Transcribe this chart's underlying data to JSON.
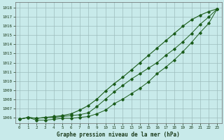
{
  "xlabel": "Graphe pression niveau de la mer (hPa)",
  "xlim": [
    -0.5,
    23.5
  ],
  "ylim": [
    1005.4,
    1018.6
  ],
  "yticks": [
    1006,
    1007,
    1008,
    1009,
    1010,
    1011,
    1012,
    1013,
    1014,
    1015,
    1016,
    1017,
    1018
  ],
  "xticks": [
    0,
    1,
    2,
    3,
    4,
    5,
    6,
    7,
    8,
    9,
    10,
    11,
    12,
    13,
    14,
    15,
    16,
    17,
    18,
    19,
    20,
    21,
    22,
    23
  ],
  "background_color": "#c8eaea",
  "grid_color": "#9dbdbd",
  "line_color": "#1a5c1a",
  "line1_x": [
    0,
    1,
    2,
    3,
    4,
    5,
    6,
    7,
    8,
    9,
    10,
    11,
    12,
    13,
    14,
    15,
    16,
    17,
    18,
    19,
    20,
    21,
    22,
    23
  ],
  "line1_y": [
    1005.8,
    1006.0,
    1005.9,
    1006.0,
    1006.0,
    1006.1,
    1006.2,
    1006.3,
    1006.5,
    1007.2,
    1008.0,
    1008.8,
    1009.5,
    1010.2,
    1010.8,
    1011.4,
    1012.0,
    1012.8,
    1013.5,
    1014.3,
    1015.2,
    1016.2,
    1017.0,
    1017.9
  ],
  "line2_x": [
    0,
    1,
    2,
    3,
    4,
    5,
    6,
    7,
    8,
    9,
    10,
    11,
    12,
    13,
    14,
    15,
    16,
    17,
    18,
    19,
    20,
    21,
    22,
    23
  ],
  "line2_y": [
    1005.8,
    1006.0,
    1005.7,
    1005.7,
    1005.8,
    1005.9,
    1005.9,
    1006.0,
    1006.1,
    1006.4,
    1006.8,
    1007.5,
    1008.0,
    1008.6,
    1009.2,
    1009.9,
    1010.8,
    1011.5,
    1012.3,
    1013.2,
    1014.2,
    1015.3,
    1016.3,
    1017.9
  ],
  "line3_x": [
    0,
    1,
    2,
    3,
    4,
    5,
    6,
    7,
    8,
    9,
    10,
    11,
    12,
    13,
    14,
    15,
    16,
    17,
    18,
    19,
    20,
    21,
    22,
    23
  ],
  "line3_y": [
    1005.8,
    1006.0,
    1005.9,
    1006.0,
    1006.1,
    1006.2,
    1006.4,
    1006.8,
    1007.3,
    1008.0,
    1008.9,
    1009.7,
    1010.4,
    1011.2,
    1012.0,
    1012.8,
    1013.6,
    1014.4,
    1015.2,
    1016.0,
    1016.7,
    1017.2,
    1017.6,
    1017.9
  ]
}
